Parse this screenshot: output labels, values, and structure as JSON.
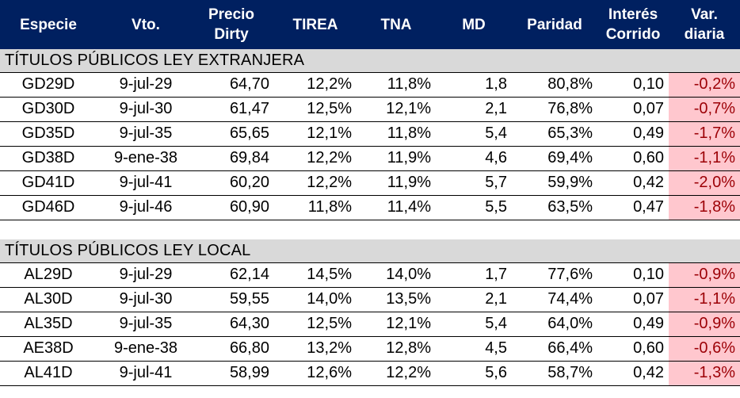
{
  "headers": [
    "Especie",
    "Vto.",
    "Precio Dirty",
    "TIREA",
    "TNA",
    "MD",
    "Paridad",
    "Interés Corrido",
    "Var. diaria"
  ],
  "header_lines": {
    "precio": [
      "Precio",
      "Dirty"
    ],
    "interes": [
      "Interés",
      "Corrido"
    ],
    "var": [
      "Var.",
      "diaria"
    ]
  },
  "sections": [
    {
      "title": "TÍTULOS PÚBLICOS LEY EXTRANJERA",
      "rows": [
        [
          "GD29D",
          "9-jul-29",
          "64,70",
          "12,2%",
          "11,8%",
          "1,8",
          "80,8%",
          "0,10",
          "-0,2%"
        ],
        [
          "GD30D",
          "9-jul-30",
          "61,47",
          "12,5%",
          "12,1%",
          "2,1",
          "76,8%",
          "0,07",
          "-0,7%"
        ],
        [
          "GD35D",
          "9-jul-35",
          "65,65",
          "12,1%",
          "11,8%",
          "5,4",
          "65,3%",
          "0,49",
          "-1,7%"
        ],
        [
          "GD38D",
          "9-ene-38",
          "69,84",
          "12,2%",
          "11,9%",
          "4,6",
          "69,4%",
          "0,60",
          "-1,1%"
        ],
        [
          "GD41D",
          "9-jul-41",
          "60,20",
          "12,2%",
          "11,9%",
          "5,7",
          "59,9%",
          "0,42",
          "-2,0%"
        ],
        [
          "GD46D",
          "9-jul-46",
          "60,90",
          "11,8%",
          "11,4%",
          "5,5",
          "63,5%",
          "0,47",
          "-1,8%"
        ]
      ]
    },
    {
      "title": "TÍTULOS PÚBLICOS LEY LOCAL",
      "rows": [
        [
          "AL29D",
          "9-jul-29",
          "62,14",
          "14,5%",
          "14,0%",
          "1,7",
          "77,6%",
          "0,10",
          "-0,9%"
        ],
        [
          "AL30D",
          "9-jul-30",
          "59,55",
          "14,0%",
          "13,5%",
          "2,1",
          "74,4%",
          "0,07",
          "-1,1%"
        ],
        [
          "AL35D",
          "9-jul-35",
          "64,30",
          "12,5%",
          "12,1%",
          "5,4",
          "64,0%",
          "0,49",
          "-0,9%"
        ],
        [
          "AE38D",
          "9-ene-38",
          "66,80",
          "13,2%",
          "12,8%",
          "4,5",
          "66,4%",
          "0,60",
          "-0,6%"
        ],
        [
          "AL41D",
          "9-jul-41",
          "58,99",
          "12,6%",
          "12,2%",
          "5,6",
          "58,7%",
          "0,42",
          "-1,3%"
        ]
      ]
    }
  ],
  "colors": {
    "header_bg": "#002060",
    "section_bg": "#d9d9d9",
    "negative_bg": "#ffc7ce",
    "negative_text": "#9c0006"
  }
}
